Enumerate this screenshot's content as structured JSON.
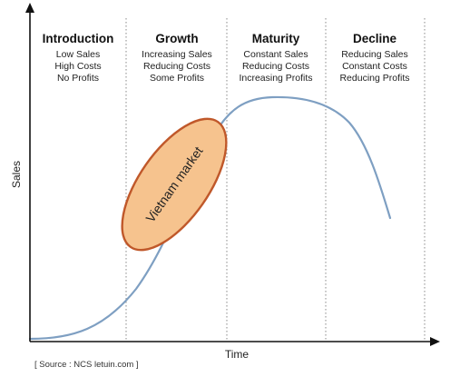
{
  "diagram": {
    "stages": [
      {
        "title": "Introduction",
        "lines": [
          "Low Sales",
          "High Costs",
          "No Profits"
        ]
      },
      {
        "title": "Growth",
        "lines": [
          "Increasing Sales",
          "Reducing Costs",
          "Some Profits"
        ]
      },
      {
        "title": "Maturity",
        "lines": [
          "Constant Sales",
          "Reducing Costs",
          "Increasing Profits"
        ]
      },
      {
        "title": "Decline",
        "lines": [
          "Reducing Sales",
          "Constant Costs",
          "Reducing Profits"
        ]
      }
    ],
    "y_axis_label": "Sales",
    "x_axis_label": "Time",
    "highlight_label": "Vietnam market",
    "source": "[ Source : NCS letuin.com ]",
    "colors": {
      "curve": "#7e9fc2",
      "highlight_fill": "#f6c38e",
      "highlight_stroke": "#c0582a",
      "axis": "#111111",
      "divider": "#888888"
    }
  }
}
